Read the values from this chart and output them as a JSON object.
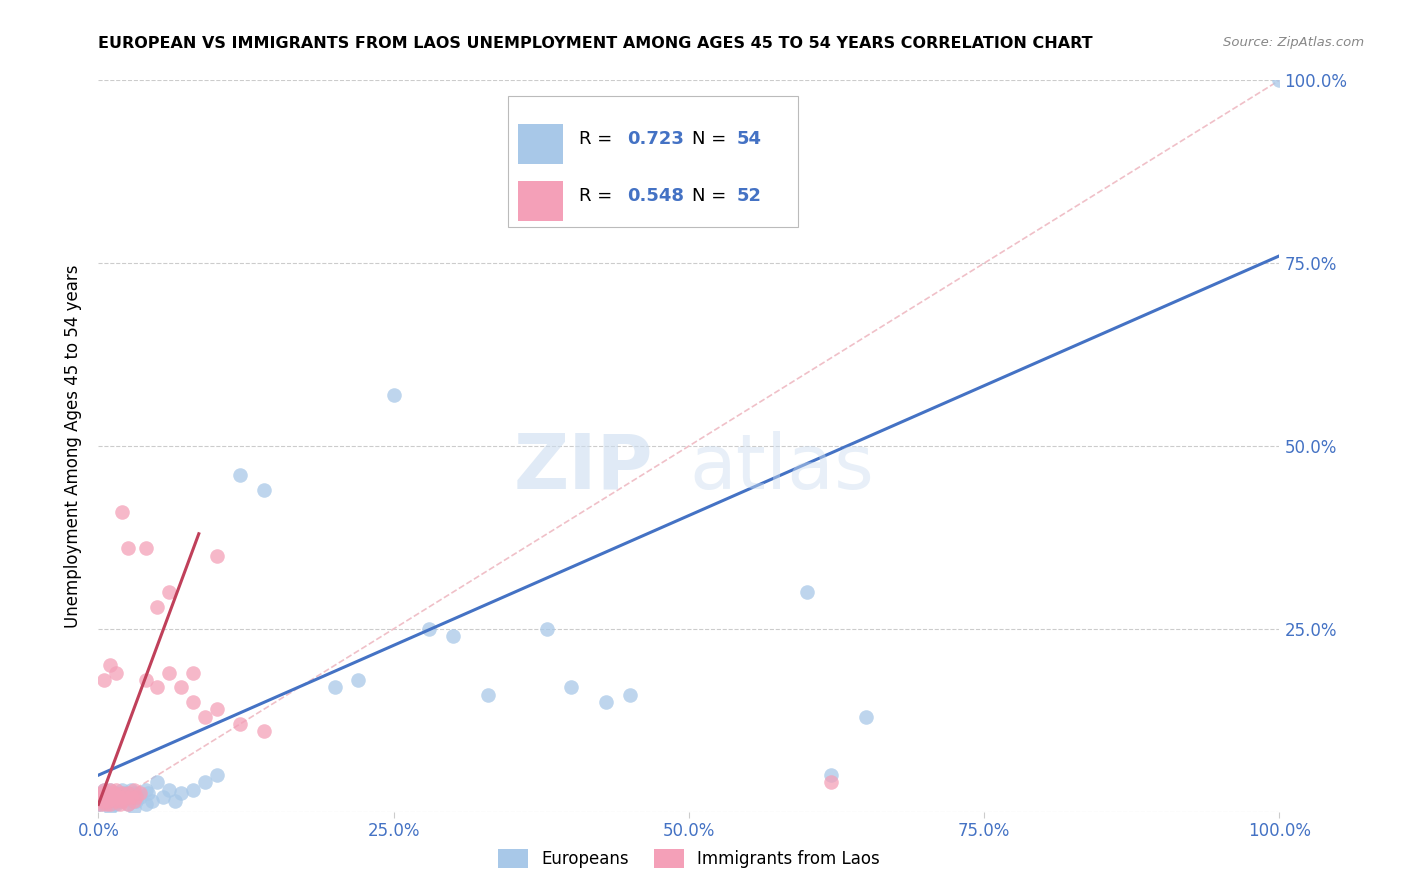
{
  "title": "EUROPEAN VS IMMIGRANTS FROM LAOS UNEMPLOYMENT AMONG AGES 45 TO 54 YEARS CORRELATION CHART",
  "source": "Source: ZipAtlas.com",
  "ylabel": "Unemployment Among Ages 45 to 54 years",
  "xlim": [
    0,
    1.0
  ],
  "ylim": [
    0,
    1.0
  ],
  "xticks": [
    0.0,
    0.25,
    0.5,
    0.75,
    1.0
  ],
  "yticks": [
    0.25,
    0.5,
    0.75,
    1.0
  ],
  "xticklabels": [
    "0.0%",
    "25.0%",
    "50.0%",
    "75.0%",
    "100.0%"
  ],
  "yticklabels_right": [
    "25.0%",
    "50.0%",
    "75.0%",
    "100.0%"
  ],
  "legend_r_blue": "0.723",
  "legend_n_blue": "54",
  "legend_r_pink": "0.548",
  "legend_n_pink": "52",
  "legend_label_blue": "Europeans",
  "legend_label_pink": "Immigrants from Laos",
  "color_blue": "#a8c8e8",
  "color_blue_line": "#4472c4",
  "color_pink": "#f4a0b8",
  "color_pink_line": "#c0405a",
  "color_tick": "#4472c4",
  "color_r_value": "#4472c4",
  "watermark_zip": "ZIP",
  "watermark_atlas": "atlas",
  "background_color": "#ffffff",
  "grid_color": "#cccccc",
  "blue_line_x0": 0.0,
  "blue_line_y0": 0.05,
  "blue_line_x1": 1.0,
  "blue_line_y1": 0.76,
  "pink_line_x0": 0.0,
  "pink_line_y0": 0.01,
  "pink_line_x1": 0.085,
  "pink_line_y1": 0.38,
  "ref_line_color": "#f0c0c8",
  "ref_line_style": "--"
}
